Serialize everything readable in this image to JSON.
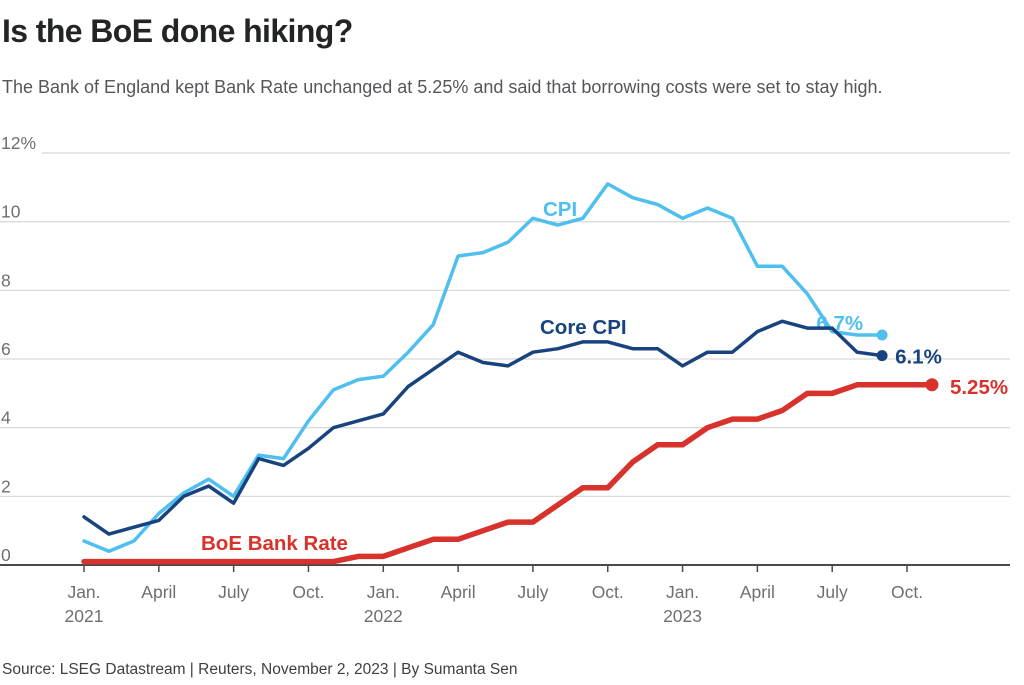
{
  "header": {
    "title": "Is the BoE done hiking?",
    "subtitle": "The Bank of England kept Bank Rate unchanged at 5.25% and said that borrowing costs were set to stay high."
  },
  "footer": {
    "source": "Source: LSEG Datastream | Reuters, November 2, 2023 | By Sumanta Sen"
  },
  "colors": {
    "cpi": "#4FBFF0",
    "core_cpi": "#18437E",
    "bank_rate": "#D7322B",
    "gridline": "#DBDBDB",
    "axis": "#4A4A4A",
    "axis_label": "#6D6F73"
  },
  "chart_data": {
    "type": "line",
    "title": "Is the BoE done hiking?",
    "x_unit": "month",
    "x_start": "2021-01",
    "tick_interval_months": 3,
    "x_ticks": [
      {
        "month": "Jan.",
        "year": "2021"
      },
      {
        "month": "April",
        "year": ""
      },
      {
        "month": "July",
        "year": ""
      },
      {
        "month": "Oct.",
        "year": ""
      },
      {
        "month": "Jan.",
        "year": "2022"
      },
      {
        "month": "April",
        "year": ""
      },
      {
        "month": "July",
        "year": ""
      },
      {
        "month": "Oct.",
        "year": ""
      },
      {
        "month": "Jan.",
        "year": "2023"
      },
      {
        "month": "April",
        "year": ""
      },
      {
        "month": "July",
        "year": ""
      },
      {
        "month": "Oct.",
        "year": ""
      }
    ],
    "ylim": [
      0,
      12
    ],
    "grid": true,
    "y_ticks": [
      {
        "value": 12,
        "label": "12%"
      },
      {
        "value": 10,
        "label": "10"
      },
      {
        "value": 8,
        "label": "8"
      },
      {
        "value": 6,
        "label": "6"
      },
      {
        "value": 4,
        "label": "4"
      },
      {
        "value": 2,
        "label": "2"
      },
      {
        "value": 0,
        "label": "0"
      }
    ],
    "legend_position": "inline-labels",
    "series": [
      {
        "name": "CPI",
        "line_label": "CPI",
        "end_label": "6.7%",
        "color": "#4FBFF0",
        "values": [
          0.7,
          0.4,
          0.7,
          1.5,
          2.1,
          2.5,
          2.0,
          3.2,
          3.1,
          4.2,
          5.1,
          5.4,
          5.5,
          6.2,
          7.0,
          9.0,
          9.1,
          9.4,
          10.1,
          9.9,
          10.1,
          11.1,
          10.7,
          10.5,
          10.1,
          10.4,
          10.1,
          8.7,
          8.7,
          7.9,
          6.8,
          6.7,
          6.7
        ]
      },
      {
        "name": "Core CPI",
        "line_label": "Core CPI",
        "end_label": "6.1%",
        "color": "#18437E",
        "values": [
          1.4,
          0.9,
          1.1,
          1.3,
          2.0,
          2.3,
          1.8,
          3.1,
          2.9,
          3.4,
          4.0,
          4.2,
          4.4,
          5.2,
          5.7,
          6.2,
          5.9,
          5.8,
          6.2,
          6.3,
          6.5,
          6.5,
          6.3,
          6.3,
          5.8,
          6.2,
          6.2,
          6.8,
          7.1,
          6.9,
          6.9,
          6.2,
          6.1
        ]
      },
      {
        "name": "BoE Bank Rate",
        "line_label": "BoE Bank Rate",
        "end_label": "5.25%",
        "color": "#D7322B",
        "values": [
          0.1,
          0.1,
          0.1,
          0.1,
          0.1,
          0.1,
          0.1,
          0.1,
          0.1,
          0.1,
          0.1,
          0.25,
          0.25,
          0.5,
          0.75,
          0.75,
          1.0,
          1.25,
          1.25,
          1.75,
          2.25,
          2.25,
          3.0,
          3.5,
          3.5,
          4.0,
          4.25,
          4.25,
          4.5,
          5.0,
          5.0,
          5.25,
          5.25,
          5.25,
          5.25
        ]
      }
    ]
  }
}
